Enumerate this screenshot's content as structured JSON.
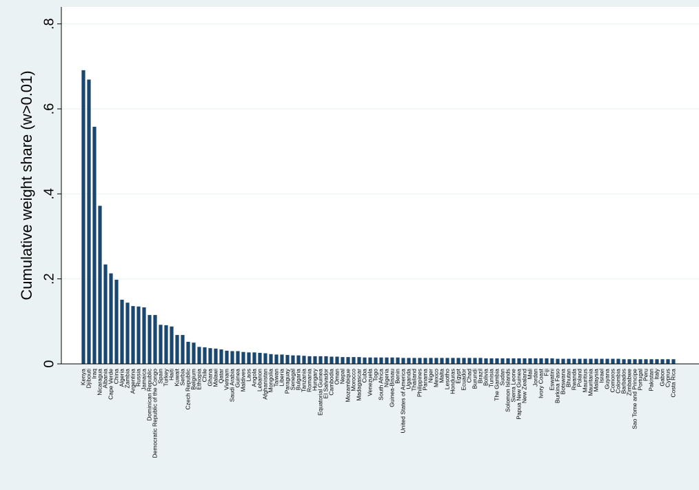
{
  "chart_data": {
    "type": "bar",
    "ylabel": "Cumulative weight share (w>0.01)",
    "color": "#1a476f",
    "grid": true,
    "ylim": [
      0,
      0.84
    ],
    "yticks": [
      0,
      {
        "value": 0.2,
        "label": ".2"
      },
      {
        "value": 0.4,
        "label": ".4"
      },
      {
        "value": 0.6,
        "label": ".6"
      },
      {
        "value": 0.8,
        "label": ".8"
      }
    ],
    "categories": [
      "Kenya",
      "Djibouti",
      "Iraq",
      "Nicaragua",
      "Albania",
      "Cape Verde",
      "China",
      "Algeria",
      "Zambia",
      "Argentina",
      "Russia",
      "Jamaica",
      "Dominican Republic",
      "Democratic Republic of the Congo",
      "Spain",
      "Turkey",
      "Haiti",
      "Kuwait",
      "Serbia",
      "Czech Republic",
      "Belgium",
      "Ethiopia",
      "Chile",
      "Ghana",
      "Malawi",
      "Qatar",
      "Vietnam",
      "Saudi Arabia",
      "Guinea",
      "Maldives",
      "Laos",
      "Angola",
      "Lebanon",
      "Afghanistan",
      "Mongolia",
      "Taiwan",
      "Liberia",
      "Paraguay",
      "Senegal",
      "Bulgaria",
      "Tanzania",
      "Romania",
      "Hungary",
      "Equatorial Guinea",
      "El Salvador",
      "Cambodia",
      "Oman",
      "Nepal",
      "Mozambique",
      "Morocco",
      "Madagascar",
      "Cuba",
      "Venezuela",
      "Togo",
      "South Africa",
      "Nigeria",
      "Guinea-Bissau",
      "Benin",
      "United States of America",
      "Uganda",
      "Thailand",
      "Philippines",
      "Panama",
      "Niger",
      "Mexico",
      "Malta",
      "Lesotho",
      "Honduras",
      "Egypt",
      "Ecuador",
      "Chad",
      "Burundi",
      "Brazil",
      "Bolivia",
      "Tunisia",
      "The Gambia",
      "Sudan",
      "Solomon Islands",
      "Sierra Leone",
      "Papua New Guinea",
      "New Zealand",
      "Mali",
      "Jordan",
      "Ivory Coast",
      "Fiji",
      "Eswatini",
      "Burkina Faso",
      "Botswana",
      "Bhutan",
      "Rwanda",
      "Poland",
      "Mauritius",
      "Mauritania",
      "Malaysia",
      "Israel",
      "Guyana",
      "Comoros",
      "Colombia",
      "Barbados",
      "Zimbabwe",
      "Sao Tome and Principe",
      "Portugal",
      "Peru",
      "Pakistan",
      "Italy",
      "Gabon",
      "Cyprus",
      "Costa Rica"
    ],
    "values": [
      0.691,
      0.669,
      0.558,
      0.372,
      0.234,
      0.213,
      0.198,
      0.151,
      0.144,
      0.136,
      0.135,
      0.133,
      0.115,
      0.115,
      0.092,
      0.091,
      0.088,
      0.068,
      0.068,
      0.052,
      0.05,
      0.04,
      0.039,
      0.037,
      0.036,
      0.034,
      0.031,
      0.03,
      0.03,
      0.028,
      0.027,
      0.027,
      0.026,
      0.025,
      0.023,
      0.022,
      0.022,
      0.021,
      0.02,
      0.02,
      0.019,
      0.018,
      0.018,
      0.018,
      0.018,
      0.017,
      0.017,
      0.016,
      0.016,
      0.016,
      0.016,
      0.015,
      0.015,
      0.015,
      0.015,
      0.015,
      0.015,
      0.015,
      0.014,
      0.014,
      0.014,
      0.014,
      0.014,
      0.014,
      0.014,
      0.014,
      0.014,
      0.014,
      0.014,
      0.014,
      0.014,
      0.014,
      0.014,
      0.013,
      0.013,
      0.013,
      0.013,
      0.013,
      0.013,
      0.013,
      0.013,
      0.013,
      0.013,
      0.013,
      0.013,
      0.013,
      0.012,
      0.012,
      0.012,
      0.012,
      0.012,
      0.012,
      0.012,
      0.012,
      0.012,
      0.012,
      0.012,
      0.012,
      0.011,
      0.011,
      0.011,
      0.011,
      0.011,
      0.011,
      0.011,
      0.011,
      0.011,
      0.011
    ]
  }
}
